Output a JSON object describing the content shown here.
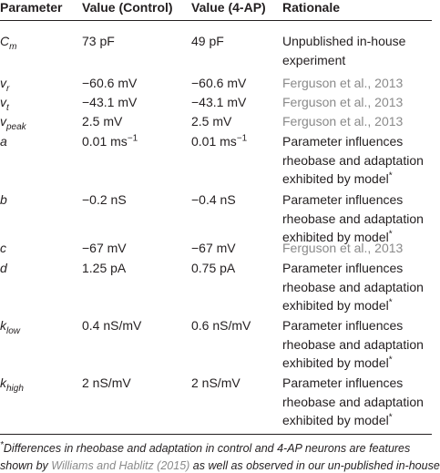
{
  "table": {
    "header": [
      "Parameter",
      "Value (Control)",
      "Value (4-AP)",
      "Rationale"
    ],
    "rows": [
      {
        "parameter": {
          "symbol": "C",
          "subscript": "m"
        },
        "control": "73 pF",
        "ap": "49 pF",
        "rationale": {
          "lines": [
            "Unpublished in-house",
            "experiment"
          ]
        }
      },
      {
        "parameter": {
          "symbol": "v",
          "subscript": "r"
        },
        "control": "−60.6 mV",
        "ap": "−60.6 mV",
        "rationale": {
          "lines": [
            "Ferguson et al., 2013"
          ],
          "color": "#8a8a8a"
        }
      },
      {
        "parameter": {
          "symbol": "v",
          "subscript": "t"
        },
        "control": "−43.1 mV",
        "ap": "−43.1 mV",
        "rationale": {
          "lines": [
            "Ferguson et al., 2013"
          ],
          "color": "#8a8a8a"
        }
      },
      {
        "parameter": {
          "symbol": "v",
          "subscript": "peak"
        },
        "control": "2.5 mV",
        "ap": "2.5 mV",
        "rationale": {
          "lines": [
            "Ferguson et al., 2013"
          ],
          "color": "#8a8a8a"
        }
      },
      {
        "parameter": {
          "symbol": "a"
        },
        "control": {
          "text": "0.01 ms",
          "sup": "−1"
        },
        "ap": {
          "text": "0.01 ms",
          "sup": "−1"
        },
        "rationale": {
          "lines": [
            "Parameter influences",
            "rheobase and adaptation",
            "exhibited by model"
          ],
          "sup": "*"
        }
      },
      {
        "parameter": {
          "symbol": "b"
        },
        "control": "−0.2 nS",
        "ap": "−0.4 nS",
        "rationale": {
          "lines": [
            "Parameter influences",
            "rheobase and adaptation",
            "exhibited by model"
          ],
          "sup": "*"
        }
      },
      {
        "parameter": {
          "symbol": "c"
        },
        "control": "−67 mV",
        "ap": "−67 mV",
        "rationale": {
          "lines": [
            "Ferguson et al., 2013"
          ],
          "color": "#8a8a8a"
        }
      },
      {
        "parameter": {
          "symbol": "d"
        },
        "control": "1.25 pA",
        "ap": "0.75 pA",
        "rationale": {
          "lines": [
            "Parameter influences",
            "rheobase and adaptation",
            "exhibited by model"
          ],
          "sup": "*"
        }
      },
      {
        "parameter": {
          "symbol": "k",
          "subscript": "low"
        },
        "control": "0.4 nS/mV",
        "ap": "0.6 nS/mV",
        "rationale": {
          "lines": [
            "Parameter influences",
            "rheobase and adaptation",
            "exhibited by model"
          ],
          "sup": "*"
        }
      },
      {
        "parameter": {
          "symbol": "k",
          "subscript": "high"
        },
        "control": "2 nS/mV",
        "ap": "2 nS/mV",
        "rationale": {
          "lines": [
            "Parameter influences",
            "rheobase and adaptation",
            "exhibited by model"
          ],
          "sup": "*"
        }
      }
    ]
  },
  "footnote": {
    "marker": "*",
    "lines": [
      [
        {
          "text": "Differences in rheobase and adaptation in control and 4-AP neurons are features"
        }
      ],
      [
        {
          "text": "shown by "
        },
        {
          "text": "Williams and Hablitz (2015)",
          "color": "#8a8a8a"
        },
        {
          "text": " as well as observed in our un-published in-house"
        }
      ]
    ]
  }
}
